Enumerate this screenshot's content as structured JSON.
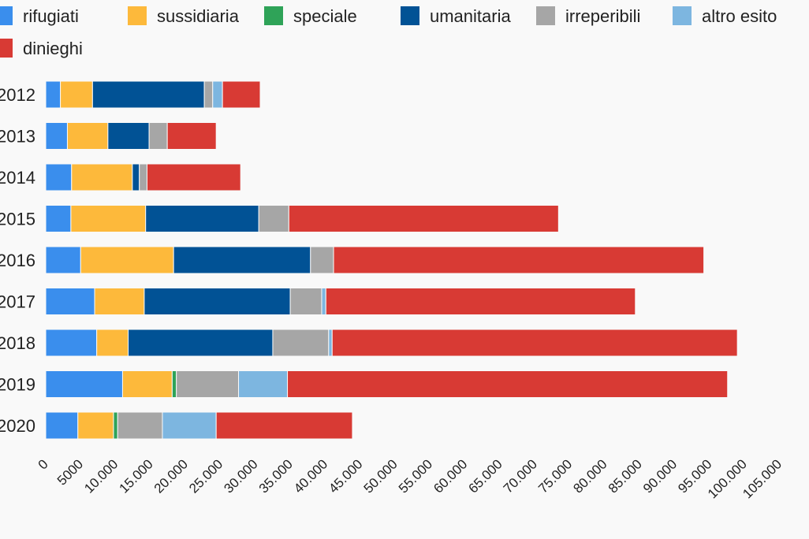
{
  "chart_data": {
    "type": "bar",
    "orientation": "horizontal",
    "stacked": true,
    "categories": [
      "2012",
      "2013",
      "2014",
      "2015",
      "2016",
      "2017",
      "2018",
      "2019",
      "2020"
    ],
    "series": [
      {
        "name": "rifugiati",
        "color": "#3a8eed",
        "values": [
          2100,
          3100,
          3700,
          3600,
          5000,
          7000,
          7300,
          11000,
          4600
        ]
      },
      {
        "name": "sussidiaria",
        "color": "#fdb93b",
        "values": [
          4600,
          5800,
          8700,
          10700,
          13300,
          7100,
          4500,
          7100,
          5100
        ]
      },
      {
        "name": "speciale",
        "color": "#2fa358",
        "values": [
          0,
          0,
          0,
          0,
          0,
          0,
          0,
          600,
          600
        ]
      },
      {
        "name": "umanitaria",
        "color": "#015295",
        "values": [
          16000,
          5900,
          1000,
          16200,
          19600,
          20900,
          20700,
          0,
          0
        ]
      },
      {
        "name": "irreperibili",
        "color": "#a6a6a6",
        "values": [
          1200,
          2600,
          1100,
          4300,
          3300,
          4500,
          8000,
          8900,
          6400
        ]
      },
      {
        "name": "altro esito",
        "color": "#7db6e0",
        "values": [
          1400,
          0,
          0,
          0,
          0,
          600,
          500,
          7000,
          7700
        ]
      },
      {
        "name": "dinieghi",
        "color": "#d83a34",
        "values": [
          5400,
          7000,
          13400,
          38600,
          53000,
          44300,
          58000,
          63000,
          19500
        ]
      }
    ],
    "x_ticks": [
      "0",
      "5000",
      "10.000",
      "15.000",
      "20.000",
      "25.000",
      "30.000",
      "35.000",
      "40.000",
      "45.000",
      "50.000",
      "55.000",
      "60.000",
      "65.000",
      "70.000",
      "75.000",
      "80.000",
      "85.000",
      "90.000",
      "95.000",
      "100.000",
      "105.000"
    ],
    "xlim": [
      0,
      105000
    ],
    "legend_position": "top",
    "grid": false
  }
}
